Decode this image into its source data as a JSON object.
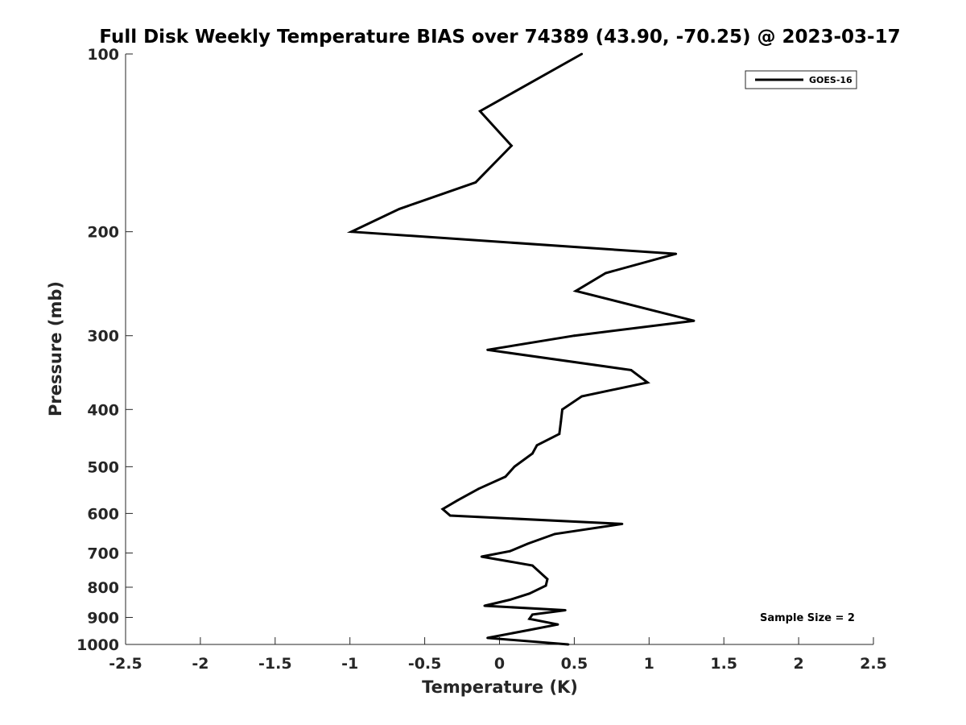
{
  "chart_data": {
    "type": "line",
    "title": "Full Disk Weekly Temperature BIAS over 74389 (43.90, -70.25) @ 2023-03-17",
    "xlabel": "Temperature (K)",
    "ylabel": "Pressure (mb)",
    "xlim": [
      -2.5,
      2.5
    ],
    "ylim": [
      100,
      1000
    ],
    "y_scale": "log",
    "y_reversed": true,
    "grid": false,
    "legend_position": "top-right",
    "x_ticks": [
      -2.5,
      -2,
      -1.5,
      -1,
      -0.5,
      0,
      0.5,
      1,
      1.5,
      2,
      2.5
    ],
    "x_tick_labels": [
      "-2.5",
      "-2",
      "-1.5",
      "-1",
      "-0.5",
      "0",
      "0.5",
      "1",
      "1.5",
      "2",
      "2.5"
    ],
    "y_ticks": [
      100,
      200,
      300,
      400,
      500,
      600,
      700,
      800,
      900,
      1000
    ],
    "y_tick_labels": [
      "100",
      "200",
      "300",
      "400",
      "500",
      "600",
      "700",
      "800",
      "900",
      "1000"
    ],
    "series": [
      {
        "name": "GOES-16",
        "color": "#000000",
        "points": [
          {
            "x": 0.55,
            "y": 100
          },
          {
            "x": -0.13,
            "y": 125
          },
          {
            "x": 0.08,
            "y": 143
          },
          {
            "x": -0.16,
            "y": 165
          },
          {
            "x": -0.67,
            "y": 183
          },
          {
            "x": -0.99,
            "y": 200
          },
          {
            "x": 1.18,
            "y": 218
          },
          {
            "x": 0.71,
            "y": 235
          },
          {
            "x": 0.51,
            "y": 252
          },
          {
            "x": 1.3,
            "y": 283
          },
          {
            "x": 0.5,
            "y": 300
          },
          {
            "x": -0.08,
            "y": 317
          },
          {
            "x": 0.88,
            "y": 343
          },
          {
            "x": 0.99,
            "y": 360
          },
          {
            "x": 0.55,
            "y": 380
          },
          {
            "x": 0.42,
            "y": 400
          },
          {
            "x": 0.41,
            "y": 420
          },
          {
            "x": 0.4,
            "y": 440
          },
          {
            "x": 0.25,
            "y": 460
          },
          {
            "x": 0.22,
            "y": 475
          },
          {
            "x": 0.1,
            "y": 500
          },
          {
            "x": 0.04,
            "y": 520
          },
          {
            "x": -0.14,
            "y": 545
          },
          {
            "x": -0.28,
            "y": 570
          },
          {
            "x": -0.38,
            "y": 590
          },
          {
            "x": -0.33,
            "y": 605
          },
          {
            "x": 0.82,
            "y": 625
          },
          {
            "x": 0.37,
            "y": 650
          },
          {
            "x": 0.19,
            "y": 675
          },
          {
            "x": 0.07,
            "y": 695
          },
          {
            "x": -0.12,
            "y": 710
          },
          {
            "x": 0.22,
            "y": 735
          },
          {
            "x": 0.32,
            "y": 775
          },
          {
            "x": 0.31,
            "y": 795
          },
          {
            "x": 0.2,
            "y": 820
          },
          {
            "x": 0.07,
            "y": 840
          },
          {
            "x": -0.1,
            "y": 860
          },
          {
            "x": 0.44,
            "y": 875
          },
          {
            "x": 0.22,
            "y": 890
          },
          {
            "x": 0.2,
            "y": 905
          },
          {
            "x": 0.39,
            "y": 925
          },
          {
            "x": 0.2,
            "y": 945
          },
          {
            "x": -0.08,
            "y": 975
          },
          {
            "x": 0.46,
            "y": 1000
          }
        ]
      }
    ],
    "annotations": [
      {
        "text": "Sample Size = 2",
        "position": "bottom-right"
      }
    ]
  }
}
